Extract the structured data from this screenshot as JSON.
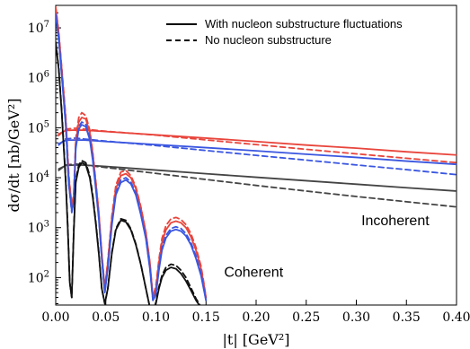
{
  "chart_data": {
    "type": "line",
    "xlabel": "|t| [GeV²]",
    "ylabel": "dσ/dt [nb/GeV²]",
    "xlim": [
      0.0,
      0.4
    ],
    "ylim_log10": [
      1.45,
      7.45
    ],
    "x_ticks": [
      0.0,
      0.05,
      0.1,
      0.15,
      0.2,
      0.25,
      0.3,
      0.35,
      0.4
    ],
    "x_tick_labels": [
      "0.00",
      "0.05",
      "0.10",
      "0.15",
      "0.20",
      "0.25",
      "0.30",
      "0.35",
      "0.40"
    ],
    "y_ticks_log10": [
      2,
      3,
      4,
      5,
      6,
      7
    ],
    "legend": [
      {
        "label": "With nucleon substructure fluctuations",
        "linestyle": "solid",
        "color": "#000000"
      },
      {
        "label": "No nucleon substructure",
        "linestyle": "dashed",
        "color": "#000000"
      }
    ],
    "legend_placement": "top-right",
    "annotations": [
      {
        "text": "Incoherent",
        "x": 0.305,
        "y_log10": 3.05
      },
      {
        "text": "Coherent",
        "x": 0.168,
        "y_log10": 2.02
      }
    ],
    "series": [
      {
        "linestyle": "solid",
        "color": "#e8453c",
        "x": [
          0.003,
          0.01,
          0.02,
          0.03,
          0.05,
          0.1,
          0.15,
          0.2,
          0.25,
          0.3,
          0.35,
          0.4
        ],
        "y": [
          75000,
          88000,
          90000,
          89000,
          84000,
          72000,
          62000,
          53000,
          45000,
          39000,
          33000,
          28500
        ]
      },
      {
        "linestyle": "dashed",
        "color": "#e8453c",
        "x": [
          0.003,
          0.01,
          0.02,
          0.03,
          0.05,
          0.1,
          0.15,
          0.2,
          0.25,
          0.3,
          0.35,
          0.4
        ],
        "y": [
          70000,
          94000,
          98000,
          93000,
          85000,
          71000,
          57000,
          46000,
          37000,
          30000,
          24500,
          20000
        ]
      },
      {
        "linestyle": "solid",
        "color": "#3a56e0",
        "x": [
          0.003,
          0.01,
          0.02,
          0.03,
          0.05,
          0.1,
          0.15,
          0.2,
          0.25,
          0.3,
          0.35,
          0.4
        ],
        "y": [
          48000,
          56000,
          57000,
          56500,
          53000,
          46000,
          40000,
          34500,
          29500,
          25500,
          21500,
          18500
        ]
      },
      {
        "linestyle": "dashed",
        "color": "#3a56e0",
        "x": [
          0.003,
          0.01,
          0.02,
          0.03,
          0.05,
          0.1,
          0.15,
          0.2,
          0.25,
          0.3,
          0.35,
          0.4
        ],
        "y": [
          45000,
          60000,
          62000,
          59000,
          54000,
          44000,
          35000,
          28000,
          22500,
          18000,
          14500,
          11500
        ]
      },
      {
        "linestyle": "solid",
        "color": "#444444",
        "x": [
          0.003,
          0.01,
          0.02,
          0.03,
          0.05,
          0.1,
          0.15,
          0.2,
          0.25,
          0.3,
          0.35,
          0.4
        ],
        "y": [
          15000,
          17500,
          18000,
          17800,
          16800,
          14200,
          12000,
          10200,
          8700,
          7400,
          6300,
          5400
        ]
      },
      {
        "linestyle": "dashed",
        "color": "#444444",
        "x": [
          0.003,
          0.01,
          0.02,
          0.03,
          0.05,
          0.1,
          0.15,
          0.2,
          0.25,
          0.3,
          0.35,
          0.4
        ],
        "y": [
          14000,
          18000,
          18800,
          17800,
          16000,
          12200,
          9200,
          7000,
          5400,
          4200,
          3300,
          2600
        ]
      },
      {
        "linestyle": "solid",
        "color": "#e8453c",
        "x": [
          0.0,
          0.003,
          0.006,
          0.01,
          0.013,
          0.016,
          0.018,
          0.02,
          0.023,
          0.026,
          0.03,
          0.034,
          0.037,
          0.04,
          0.043,
          0.046,
          0.049,
          0.052,
          0.056,
          0.06,
          0.065,
          0.07,
          0.075,
          0.08,
          0.085,
          0.09,
          0.094,
          0.097,
          0.1,
          0.103,
          0.106,
          0.11,
          0.115,
          0.12,
          0.125,
          0.13,
          0.135,
          0.14,
          0.145,
          0.148,
          0.15
        ],
        "y": [
          25000000,
          8000000,
          1500000,
          150000,
          10000,
          3000,
          4000,
          50000,
          130000,
          160000,
          150000,
          80000,
          30000,
          8000,
          2000,
          300,
          60,
          200,
          1500,
          6000,
          11000,
          12000,
          10000,
          6000,
          2500,
          800,
          200,
          40,
          60,
          200,
          500,
          900,
          1250,
          1350,
          1250,
          1000,
          650,
          350,
          150,
          70,
          40
        ]
      },
      {
        "linestyle": "dashed",
        "color": "#e8453c",
        "x": [
          0.0,
          0.003,
          0.006,
          0.01,
          0.013,
          0.016,
          0.018,
          0.02,
          0.023,
          0.026,
          0.03,
          0.034,
          0.037,
          0.04,
          0.043,
          0.046,
          0.049,
          0.052,
          0.056,
          0.06,
          0.065,
          0.07,
          0.075,
          0.08,
          0.085,
          0.09,
          0.094,
          0.097,
          0.1,
          0.103,
          0.106,
          0.11,
          0.115,
          0.12,
          0.125,
          0.13,
          0.135,
          0.14,
          0.145,
          0.148,
          0.15
        ],
        "y": [
          26000000,
          8500000,
          1600000,
          170000,
          12000,
          2500,
          5000,
          60000,
          160000,
          200000,
          175000,
          90000,
          32000,
          8500,
          2000,
          300,
          60,
          220,
          1700,
          7000,
          13000,
          14000,
          11000,
          6500,
          2600,
          800,
          200,
          40,
          70,
          230,
          600,
          1100,
          1500,
          1600,
          1450,
          1150,
          750,
          400,
          170,
          75,
          40
        ]
      },
      {
        "linestyle": "solid",
        "color": "#3a56e0",
        "x": [
          0.0,
          0.003,
          0.006,
          0.01,
          0.013,
          0.016,
          0.018,
          0.02,
          0.023,
          0.026,
          0.03,
          0.034,
          0.037,
          0.04,
          0.043,
          0.046,
          0.049,
          0.052,
          0.056,
          0.06,
          0.065,
          0.07,
          0.075,
          0.08,
          0.085,
          0.09,
          0.094,
          0.097,
          0.1,
          0.103,
          0.106,
          0.11,
          0.115,
          0.12,
          0.125,
          0.13,
          0.135,
          0.14,
          0.145,
          0.148,
          0.15
        ],
        "y": [
          18000000,
          6000000,
          1100000,
          110000,
          7500,
          2200,
          3000,
          38000,
          95000,
          115000,
          105000,
          58000,
          22000,
          6000,
          1500,
          230,
          50,
          150,
          1100,
          4500,
          8000,
          9000,
          7500,
          4500,
          1800,
          600,
          150,
          35,
          45,
          140,
          350,
          620,
          850,
          920,
          850,
          680,
          450,
          240,
          110,
          55,
          35
        ]
      },
      {
        "linestyle": "dashed",
        "color": "#3a56e0",
        "x": [
          0.0,
          0.003,
          0.006,
          0.01,
          0.013,
          0.016,
          0.018,
          0.02,
          0.023,
          0.026,
          0.03,
          0.034,
          0.037,
          0.04,
          0.043,
          0.046,
          0.049,
          0.052,
          0.056,
          0.06,
          0.065,
          0.07,
          0.075,
          0.08,
          0.085,
          0.09,
          0.094,
          0.097,
          0.1,
          0.103,
          0.106,
          0.11,
          0.115,
          0.12,
          0.125,
          0.13,
          0.135,
          0.14,
          0.145,
          0.148,
          0.15
        ],
        "y": [
          19000000,
          6300000,
          1200000,
          120000,
          8000,
          2000,
          3500,
          42000,
          105000,
          130000,
          118000,
          64000,
          24000,
          6500,
          1600,
          240,
          50,
          160,
          1200,
          5000,
          9000,
          10000,
          8200,
          4900,
          1900,
          620,
          155,
          35,
          50,
          160,
          400,
          700,
          960,
          1040,
          960,
          760,
          500,
          270,
          120,
          58,
          35
        ]
      },
      {
        "linestyle": "solid",
        "color": "#111111",
        "x": [
          0.0,
          0.003,
          0.006,
          0.01,
          0.012,
          0.014,
          0.016,
          0.018,
          0.02,
          0.023,
          0.026,
          0.03,
          0.034,
          0.037,
          0.04,
          0.043,
          0.046,
          0.049,
          0.052,
          0.056,
          0.06,
          0.065,
          0.07,
          0.075,
          0.08,
          0.085,
          0.09,
          0.094,
          0.097,
          0.1,
          0.103,
          0.106,
          0.11,
          0.115,
          0.12,
          0.125,
          0.13,
          0.135,
          0.14,
          0.145,
          0.148,
          0.15
        ],
        "y": [
          5000000,
          1500000,
          200000,
          8000,
          1000,
          80,
          40,
          800,
          8000,
          16000,
          20000,
          18000,
          10000,
          4000,
          1200,
          300,
          60,
          30,
          60,
          300,
          900,
          1400,
          1300,
          900,
          450,
          180,
          60,
          25,
          20,
          30,
          60,
          100,
          140,
          160,
          150,
          120,
          85,
          55,
          35,
          25,
          20,
          18
        ]
      },
      {
        "linestyle": "dashed",
        "color": "#111111",
        "x": [
          0.0,
          0.003,
          0.006,
          0.01,
          0.012,
          0.014,
          0.016,
          0.018,
          0.02,
          0.023,
          0.026,
          0.03,
          0.034,
          0.037,
          0.04,
          0.043,
          0.046,
          0.049,
          0.052,
          0.056,
          0.06,
          0.065,
          0.07,
          0.075,
          0.08,
          0.085,
          0.09,
          0.094,
          0.097,
          0.1,
          0.103,
          0.106,
          0.11,
          0.115,
          0.12,
          0.125,
          0.13,
          0.135,
          0.14,
          0.145,
          0.148,
          0.15
        ],
        "y": [
          5200000,
          1600000,
          220000,
          9000,
          1100,
          80,
          40,
          900,
          9000,
          18000,
          22000,
          20000,
          11000,
          4400,
          1300,
          320,
          60,
          30,
          60,
          320,
          950,
          1500,
          1400,
          950,
          470,
          185,
          60,
          25,
          20,
          32,
          65,
          110,
          160,
          185,
          175,
          140,
          100,
          62,
          38,
          26,
          20,
          18
        ]
      }
    ]
  }
}
